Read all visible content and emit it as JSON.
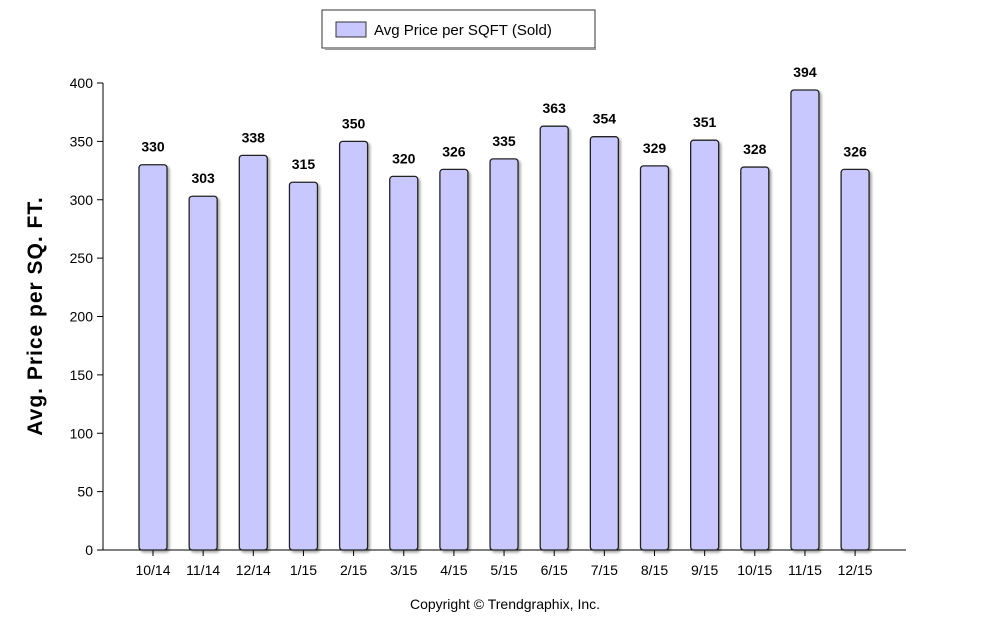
{
  "chart_data": {
    "type": "bar",
    "categories": [
      "10/14",
      "11/14",
      "12/14",
      "1/15",
      "2/15",
      "3/15",
      "4/15",
      "5/15",
      "6/15",
      "7/15",
      "8/15",
      "9/15",
      "10/15",
      "11/15",
      "12/15"
    ],
    "series": [
      {
        "name": "Avg Price per SQFT (Sold)",
        "values": [
          330,
          303,
          338,
          315,
          350,
          320,
          326,
          335,
          363,
          354,
          329,
          351,
          328,
          394,
          326
        ]
      }
    ],
    "ylabel": "Avg. Price per SQ. FT.",
    "xlabel": "",
    "ylim": [
      0,
      400
    ],
    "yticks": [
      0,
      50,
      100,
      150,
      200,
      250,
      300,
      350,
      400
    ],
    "grid": false,
    "legend_position": "top-center",
    "bar_color": "#c8c8ff",
    "bar_edge_color": "#222222"
  },
  "footer": {
    "copyright": "Copyright © Trendgraphix, Inc."
  }
}
